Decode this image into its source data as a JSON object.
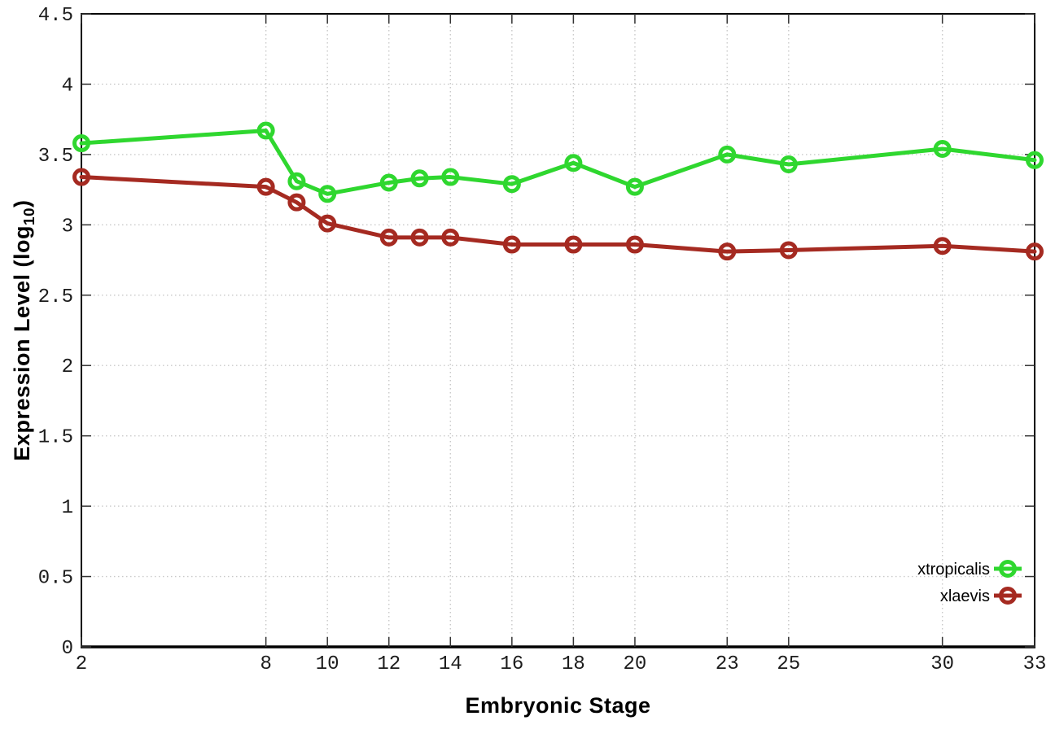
{
  "page": {
    "background": "#ffffff"
  },
  "chart_data": {
    "type": "line",
    "title": "",
    "xlabel": "Embryonic Stage",
    "ylabel": {
      "prefix": "Expression Level (log",
      "sub": "10",
      "suffix": ")"
    },
    "xlim": [
      2,
      33
    ],
    "ylim": [
      0,
      4.5
    ],
    "grid": true,
    "legend_position": "bottom-right",
    "x_ticks": [
      2,
      8,
      10,
      12,
      14,
      16,
      18,
      20,
      23,
      25,
      30,
      33
    ],
    "x_tick_labels": [
      "2",
      "8",
      "10",
      "12",
      "14",
      "16",
      "18",
      "20",
      "23",
      "25",
      "30",
      "33"
    ],
    "y_ticks": [
      0,
      0.5,
      1,
      1.5,
      2,
      2.5,
      3,
      3.5,
      4,
      4.5
    ],
    "y_tick_labels": [
      "0",
      "0.5",
      "1",
      "1.5",
      "2",
      "2.5",
      "3",
      "3.5",
      "4",
      "4.5"
    ],
    "x": [
      2,
      8,
      9,
      10,
      12,
      13,
      14,
      16,
      18,
      20,
      23,
      25,
      30,
      33
    ],
    "series": [
      {
        "name": "xtropicalis",
        "color": "#2fd72f",
        "values": [
          3.58,
          3.67,
          3.31,
          3.22,
          3.3,
          3.33,
          3.34,
          3.29,
          3.44,
          3.27,
          3.5,
          3.43,
          3.54,
          3.46
        ]
      },
      {
        "name": "xlaevis",
        "color": "#a52a21",
        "values": [
          3.34,
          3.27,
          3.16,
          3.01,
          2.91,
          2.91,
          2.91,
          2.86,
          2.86,
          2.86,
          2.81,
          2.82,
          2.85,
          2.81
        ]
      }
    ],
    "colors": {
      "axis": "#000000",
      "grid": "#c9c9c9",
      "tick_mark": "#333333",
      "tick_label": "#1c1c1c"
    }
  }
}
